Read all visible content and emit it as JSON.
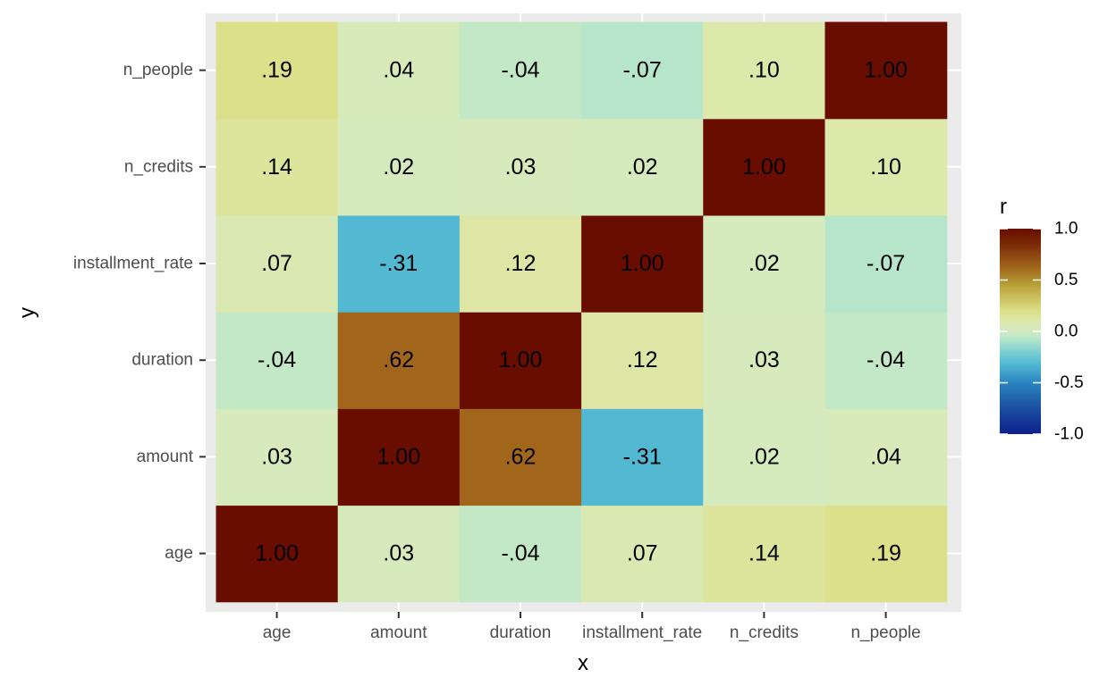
{
  "chart_data": {
    "type": "heatmap",
    "xlabel": "x",
    "ylabel": "y",
    "x_categories": [
      "age",
      "amount",
      "duration",
      "installment_rate",
      "n_credits",
      "n_people"
    ],
    "y_categories": [
      "age",
      "amount",
      "duration",
      "installment_rate",
      "n_credits",
      "n_people"
    ],
    "values": [
      [
        1.0,
        0.03,
        -0.04,
        0.07,
        0.14,
        0.19
      ],
      [
        0.03,
        1.0,
        0.62,
        -0.31,
        0.02,
        0.04
      ],
      [
        -0.04,
        0.62,
        1.0,
        0.12,
        0.03,
        -0.04
      ],
      [
        0.07,
        -0.31,
        0.12,
        1.0,
        0.02,
        -0.07
      ],
      [
        0.14,
        0.02,
        0.03,
        0.02,
        1.0,
        0.1
      ],
      [
        0.19,
        0.04,
        -0.04,
        -0.07,
        0.1,
        1.0
      ]
    ],
    "cell_labels": [
      [
        "1.00",
        ".03",
        "-.04",
        ".07",
        ".14",
        ".19"
      ],
      [
        ".03",
        "1.00",
        ".62",
        "-.31",
        ".02",
        ".04"
      ],
      [
        "-.04",
        ".62",
        "1.00",
        ".12",
        ".03",
        "-.04"
      ],
      [
        ".07",
        "-.31",
        ".12",
        "1.00",
        ".02",
        "-.07"
      ],
      [
        ".14",
        ".02",
        ".03",
        ".02",
        "1.00",
        ".10"
      ],
      [
        ".19",
        ".04",
        "-.04",
        "-.07",
        ".10",
        "1.00"
      ]
    ],
    "legend": {
      "title": "r",
      "range": [
        -1.0,
        1.0
      ],
      "ticks": [
        1.0,
        0.5,
        0.0,
        -0.5,
        -1.0
      ],
      "tick_labels": [
        "1.0",
        "0.5",
        "0.0",
        "-0.5",
        "-1.0"
      ],
      "placement": "right"
    },
    "color_scale": [
      {
        "v": -1.0,
        "c": "#0d1f8c"
      },
      {
        "v": -0.75,
        "c": "#1b4ea0"
      },
      {
        "v": -0.5,
        "c": "#2a85c0"
      },
      {
        "v": -0.3,
        "c": "#55bcd4"
      },
      {
        "v": -0.15,
        "c": "#93d9cf"
      },
      {
        "v": -0.05,
        "c": "#c0e8c8"
      },
      {
        "v": 0.02,
        "c": "#d5eabd"
      },
      {
        "v": 0.1,
        "c": "#dde8ab"
      },
      {
        "v": 0.2,
        "c": "#dcdf86"
      },
      {
        "v": 0.45,
        "c": "#b9a038"
      },
      {
        "v": 0.62,
        "c": "#a1661c"
      },
      {
        "v": 0.85,
        "c": "#7b2a07"
      },
      {
        "v": 1.0,
        "c": "#690d00"
      }
    ],
    "panel_background": "#ebebeb",
    "grid": true
  }
}
